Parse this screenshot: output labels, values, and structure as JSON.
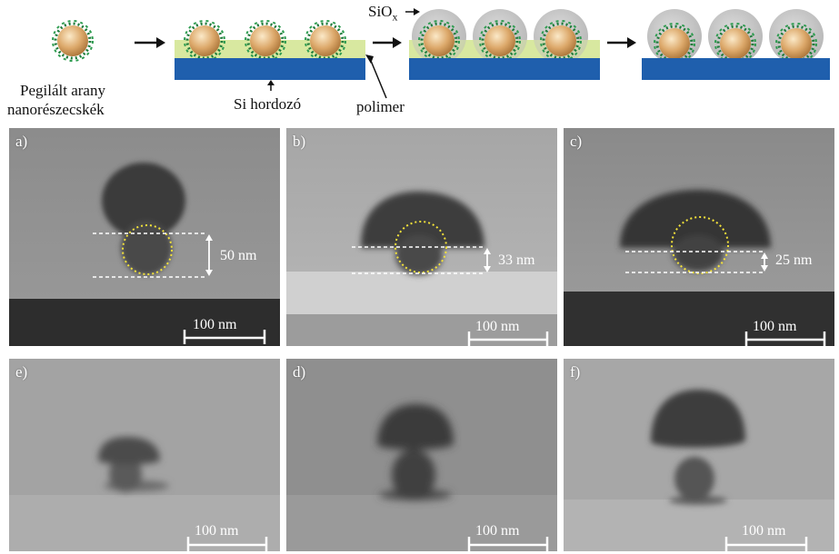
{
  "schematic": {
    "caption_line1": "Pegilált arany",
    "caption_line2": "nanorészecskék",
    "substrate_label": "Si hordozó",
    "polymer_label": "polimer",
    "siox_label": "SiO",
    "siox_sub": "x",
    "colors": {
      "substrate": "#1f5fad",
      "polymer": "#d8e8a0",
      "gold": "#d9a86a",
      "silica": "#c8c8c8",
      "peg": "#1f7a3a"
    }
  },
  "panels": [
    {
      "id": "a",
      "label": "a)",
      "measurement": "50 nm",
      "scale": "100 nm"
    },
    {
      "id": "b",
      "label": "b)",
      "measurement": "33 nm",
      "scale": "100 nm"
    },
    {
      "id": "c",
      "label": "c)",
      "measurement": "25 nm",
      "scale": "100 nm"
    },
    {
      "id": "e",
      "label": "e)",
      "scale": "100 nm"
    },
    {
      "id": "d",
      "label": "d)",
      "scale": "100 nm"
    },
    {
      "id": "f",
      "label": "f)",
      "scale": "100 nm"
    }
  ]
}
